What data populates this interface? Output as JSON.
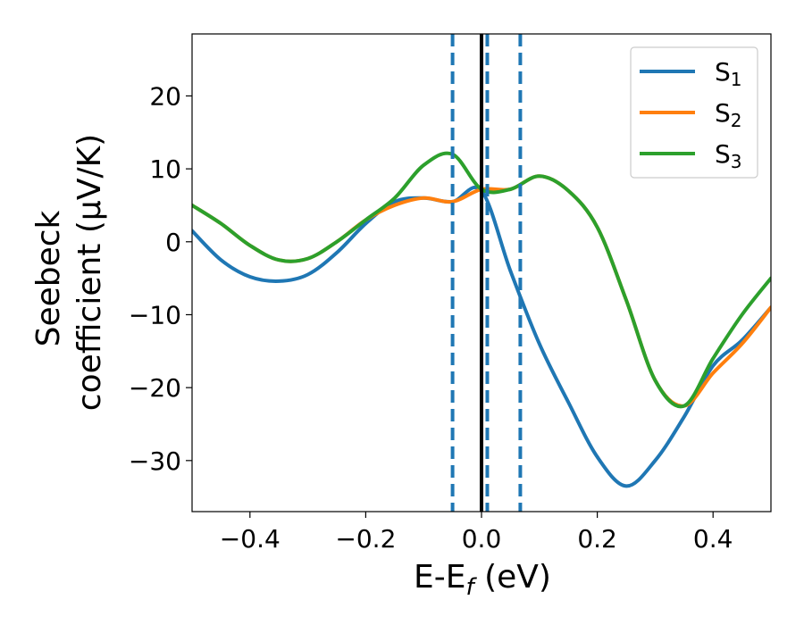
{
  "chart_data": {
    "type": "line",
    "xlabel_main": "E-E",
    "xlabel_sub": "f",
    "xlabel_unit": " (eV)",
    "ylabel_line1": "Seebeck",
    "ylabel_line2": "coefficient  (μV/K)",
    "xlim": [
      -0.5,
      0.5
    ],
    "ylim": [
      -37,
      28.5
    ],
    "xticks": [
      -0.4,
      -0.2,
      0.0,
      0.2,
      0.4
    ],
    "xtick_labels": [
      "−0.4",
      "−0.2",
      "0.0",
      "0.2",
      "0.4"
    ],
    "yticks": [
      20,
      10,
      0,
      -10,
      -20,
      -30
    ],
    "ytick_labels": [
      "20",
      "10",
      "0",
      "−10",
      "−20",
      "−30"
    ],
    "grid": false,
    "legend_position": "top-right",
    "fermi_line": {
      "x": 0.0,
      "color": "#000000"
    },
    "dashed_lines": {
      "x": [
        -0.05,
        0.01,
        0.067
      ],
      "color": "#1f77b4"
    },
    "series": [
      {
        "name": "S",
        "name_sub": "1",
        "color": "#1f77b4",
        "x": [
          -0.5,
          -0.45,
          -0.4,
          -0.35,
          -0.3,
          -0.25,
          -0.2,
          -0.15,
          -0.1,
          -0.05,
          0.0,
          0.05,
          0.1,
          0.15,
          0.2,
          0.25,
          0.3,
          0.35,
          0.4,
          0.45,
          0.5
        ],
        "y": [
          1.5,
          -2.5,
          -4.8,
          -5.4,
          -4.5,
          -1.5,
          2.5,
          5.5,
          6.0,
          5.5,
          7.0,
          -4.0,
          -14.0,
          -22.0,
          -29.5,
          -33.5,
          -30.0,
          -24.0,
          -17.0,
          -13.5,
          -9.0
        ]
      },
      {
        "name": "S",
        "name_sub": "2",
        "color": "#ff7f0e",
        "x": [
          -0.5,
          -0.45,
          -0.4,
          -0.35,
          -0.3,
          -0.25,
          -0.2,
          -0.15,
          -0.1,
          -0.05,
          0.0,
          0.05,
          0.1,
          0.15,
          0.2,
          0.25,
          0.3,
          0.35,
          0.4,
          0.45,
          0.5
        ],
        "y": [
          5.0,
          2.5,
          -0.5,
          -2.5,
          -2.3,
          0.0,
          3.0,
          5.0,
          6.0,
          5.5,
          7.2,
          7.2,
          9.0,
          7.0,
          2.0,
          -8.0,
          -19.0,
          -22.5,
          -18.0,
          -14.0,
          -9.0
        ]
      },
      {
        "name": "S",
        "name_sub": "3",
        "color": "#2ca02c",
        "x": [
          -0.5,
          -0.45,
          -0.4,
          -0.35,
          -0.3,
          -0.25,
          -0.2,
          -0.15,
          -0.1,
          -0.05,
          0.0,
          0.05,
          0.1,
          0.15,
          0.2,
          0.25,
          0.3,
          0.35,
          0.4,
          0.45,
          0.5
        ],
        "y": [
          5.0,
          2.5,
          -0.5,
          -2.5,
          -2.3,
          0.0,
          3.0,
          6.0,
          10.5,
          12.0,
          7.2,
          7.2,
          9.0,
          7.0,
          2.0,
          -8.0,
          -19.0,
          -22.5,
          -16.0,
          -10.0,
          -5.0
        ]
      }
    ]
  }
}
